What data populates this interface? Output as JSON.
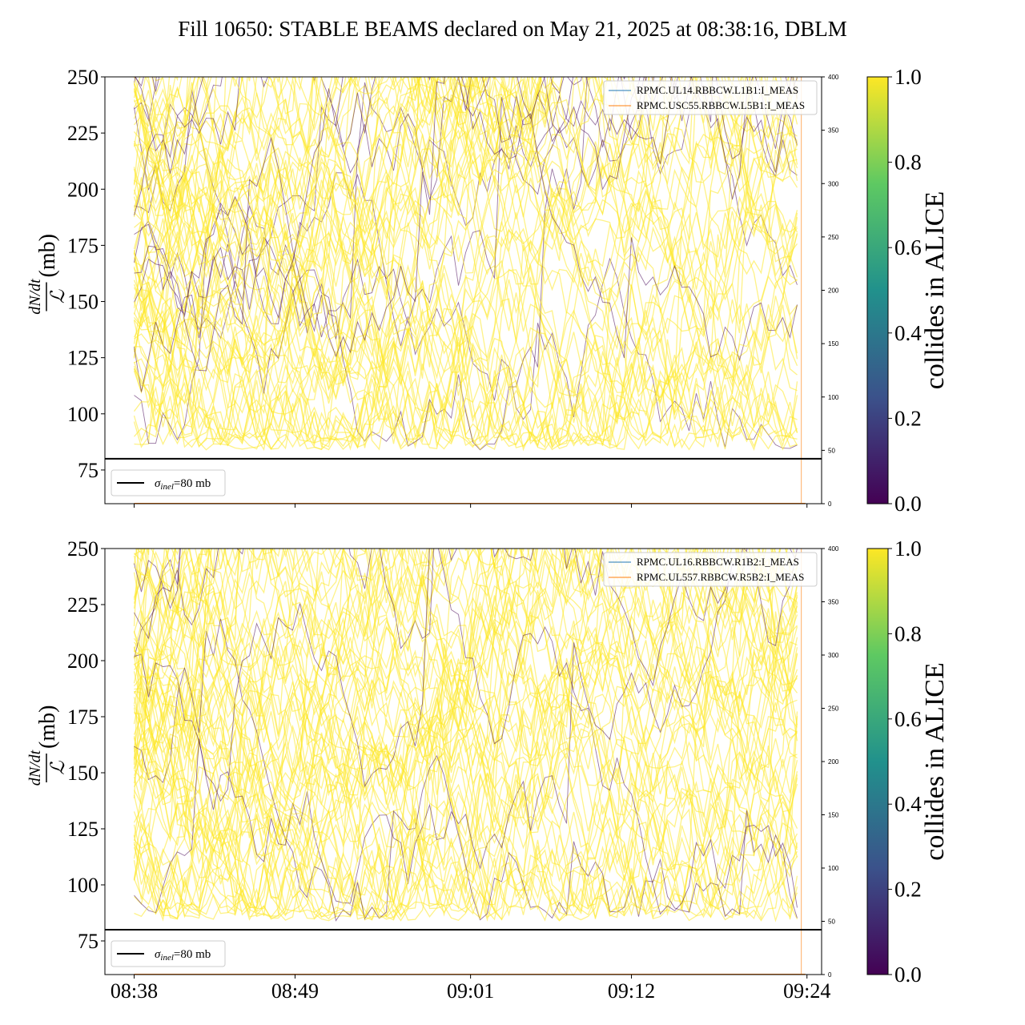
{
  "title": "Fill 10650: STABLE BEAMS declared on May 21, 2025 at 08:38:16, DBLM",
  "colors": {
    "viridis": [
      "#440154",
      "#3b528b",
      "#21918c",
      "#5ec962",
      "#fde725"
    ],
    "series_blue": "#1f77b4",
    "series_orange": "#ff7f0e",
    "sigma_line": "#000000"
  },
  "chart_data": [
    {
      "type": "line",
      "panel": "top",
      "ylabel_numerator": "dN/dt",
      "ylabel_denominator": "ℒ",
      "ylabel_unit": "(mb)",
      "ylim": [
        60,
        250
      ],
      "yticks": [
        75,
        100,
        125,
        150,
        175,
        200,
        225,
        250
      ],
      "y2lim": [
        0,
        400
      ],
      "y2ticks": [
        0,
        50,
        100,
        150,
        200,
        250,
        300,
        350,
        400
      ],
      "xlim": [
        "08:36",
        "09:25"
      ],
      "xticks": [
        "08:38",
        "08:49",
        "09:01",
        "09:12",
        "09:24"
      ],
      "show_xticklabels": false,
      "series": [
        {
          "name": "RPMC.UL14.RBBCW.L1B1:I_MEAS",
          "color": "#1f77b4",
          "y2": [
            0,
            0
          ]
        },
        {
          "name": "RPMC.USC55.RBBCW.L5B1:I_MEAS",
          "color": "#ff7f0e",
          "y2": [
            0,
            0
          ]
        }
      ],
      "reference_line": {
        "y": 80,
        "label": "σinel=80 mb",
        "label_main": "σ",
        "label_sub": "inel",
        "label_rest": "=80 mb"
      },
      "colorbar": {
        "label": "collides in ALICE",
        "range": [
          0.0,
          1.0
        ],
        "ticks": [
          "0.0",
          "0.2",
          "0.4",
          "0.6",
          "0.8",
          "1.0"
        ]
      }
    },
    {
      "type": "line",
      "panel": "bottom",
      "ylabel_numerator": "dN/dt",
      "ylabel_denominator": "ℒ",
      "ylabel_unit": "(mb)",
      "ylim": [
        60,
        250
      ],
      "yticks": [
        75,
        100,
        125,
        150,
        175,
        200,
        225,
        250
      ],
      "y2lim": [
        0,
        400
      ],
      "y2ticks": [
        0,
        50,
        100,
        150,
        200,
        250,
        300,
        350,
        400
      ],
      "xlim": [
        "08:36",
        "09:25"
      ],
      "xticks": [
        "08:38",
        "08:49",
        "09:01",
        "09:12",
        "09:24"
      ],
      "show_xticklabels": true,
      "series": [
        {
          "name": "RPMC.UL16.RBBCW.R1B2:I_MEAS",
          "color": "#1f77b4",
          "y2": [
            0,
            0
          ]
        },
        {
          "name": "RPMC.UL557.RBBCW.R5B2:I_MEAS",
          "color": "#ff7f0e",
          "y2": [
            0,
            0
          ]
        }
      ],
      "reference_line": {
        "y": 80,
        "label": "σinel=80 mb",
        "label_main": "σ",
        "label_sub": "inel",
        "label_rest": "=80 mb"
      },
      "colorbar": {
        "label": "collides in ALICE",
        "range": [
          0.0,
          1.0
        ],
        "ticks": [
          "0.0",
          "0.2",
          "0.4",
          "0.6",
          "0.8",
          "1.0"
        ]
      }
    }
  ]
}
